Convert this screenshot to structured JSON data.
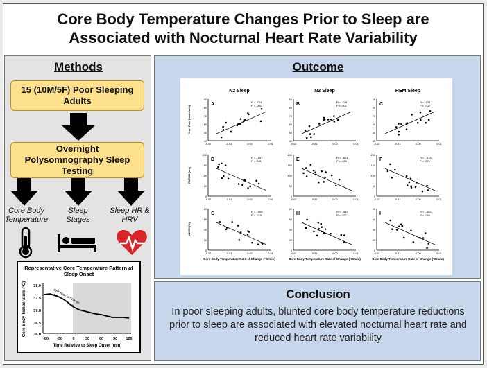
{
  "title": {
    "line1": "Core Body Temperature Changes Prior to Sleep are",
    "line2": "Associated with Nocturnal Heart Rate Variability"
  },
  "methods": {
    "heading": "Methods",
    "box1": "15 (10M/5F) Poor Sleeping Adults",
    "box2": "Overnight Polysomnography Sleep Testing",
    "measures": [
      "Core Body Temperature",
      "Sleep Stages",
      "Sleep HR & HRV"
    ],
    "icons": [
      "thermometer-icon",
      "bed-icon",
      "heart-pulse-icon"
    ],
    "temp_chart": {
      "title": "Representative Core Temperature Pattern at Sleep Onset",
      "ylabel": "Core Body Temperature (°C)",
      "xlabel": "Time Relative to Sleep Onset (min)",
      "annotation": "CBT Rate of Change",
      "yticks": [
        "38.0",
        "37.5",
        "37.0",
        "36.5",
        "36.0"
      ],
      "xticks": [
        "-60",
        "-30",
        "0",
        "30",
        "60",
        "90",
        "120"
      ]
    }
  },
  "outcome": {
    "heading": "Outcome",
    "columns": [
      "N2 Sleep",
      "N3 Sleep",
      "REM Sleep"
    ],
    "row_ylabels": [
      "Heart Rate (beats/min)",
      "RMSSD (ms)",
      "pNN50 (%)"
    ],
    "xlabel": "Core Body Temperature Rate of Change (°C/min)",
    "xticks": [
      "-0.02",
      "-0.01",
      "0.00",
      "0.01"
    ],
    "panels": [
      {
        "letter": "A",
        "r": "R = .754",
        "p": "P = .001",
        "yticks": [
          "90",
          "80",
          "70",
          "60",
          "50",
          "40"
        ]
      },
      {
        "letter": "B",
        "r": "R = .748",
        "p": "P = .001",
        "yticks": [
          "90",
          "80",
          "70",
          "60",
          "50",
          "40"
        ]
      },
      {
        "letter": "C",
        "r": "R = .735",
        "p": "P = .002",
        "yticks": [
          "90",
          "80",
          "70",
          "60",
          "50",
          "40"
        ]
      },
      {
        "letter": "D",
        "r": "R = -.557",
        "p": "P = .031",
        "yticks": [
          "200",
          "150",
          "100",
          "50",
          "0"
        ]
      },
      {
        "letter": "E",
        "r": "R = -.601",
        "p": "P = .020",
        "yticks": [
          "200",
          "150",
          "100",
          "50",
          "0"
        ]
      },
      {
        "letter": "F",
        "r": "R = -.478",
        "p": "P = .071",
        "yticks": [
          "200",
          "150",
          "100",
          "50",
          "0"
        ]
      },
      {
        "letter": "G",
        "r": "R = -.590",
        "p": "P = .019",
        "yticks": [
          "80",
          "60",
          "40",
          "20",
          "0"
        ]
      },
      {
        "letter": "H",
        "r": "R = -.542",
        "p": "P = .037",
        "yticks": [
          "80",
          "60",
          "40",
          "20",
          "0"
        ]
      },
      {
        "letter": "I",
        "r": "R = -.502",
        "p": "P = .056",
        "yticks": [
          "80",
          "60",
          "40",
          "20",
          "0"
        ]
      }
    ]
  },
  "conclusion": {
    "heading": "Conclusion",
    "text": "In poor sleeping adults, blunted core body temperature reductions prior to sleep are associated with elevated nocturnal heart rate and reduced heart rate variability"
  },
  "colors": {
    "panel_blue": "#c7d6ea",
    "methods_gray": "#e3e3e3",
    "box_yellow": "#fde08b",
    "heart_red": "#d9262b"
  }
}
